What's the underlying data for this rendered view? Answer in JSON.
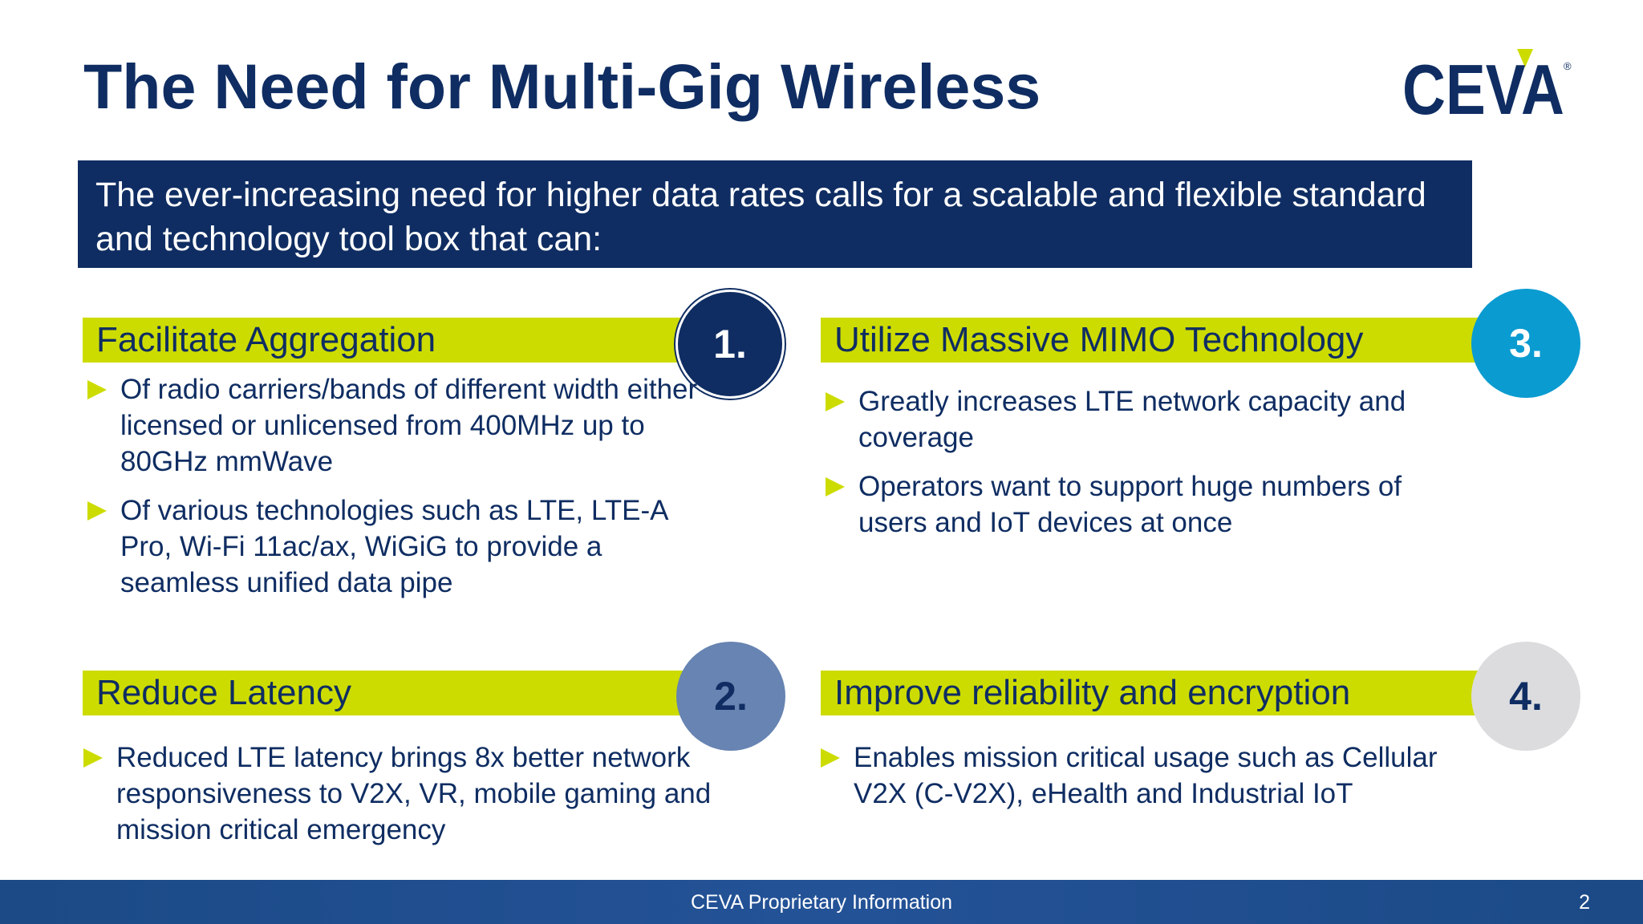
{
  "slide": {
    "title": "The Need for Multi-Gig Wireless",
    "logo_text": "CEVA",
    "logo_mark": "®",
    "intro": "The ever-increasing need for higher data rates calls for a scalable and flexible standard and technology tool box that can:"
  },
  "cards": [
    {
      "number": "1.",
      "heading": "Facilitate Aggregation",
      "circle_color": "#0f2d62",
      "bullets": [
        "Of radio carriers/bands of different width either licensed or unlicensed from 400MHz up to 80GHz mmWave",
        "Of various technologies such as LTE, LTE-A Pro, Wi-Fi 11ac/ax, WiGiG to provide a seamless unified data pipe"
      ]
    },
    {
      "number": "2.",
      "heading": "Reduce Latency",
      "circle_color": "#6784b2",
      "bullets": [
        "Reduced LTE latency brings 8x better network responsiveness to V2X, VR, mobile gaming and mission critical emergency"
      ]
    },
    {
      "number": "3.",
      "heading": "Utilize Massive MIMO Technology",
      "circle_color": "#0a9bd1",
      "bullets": [
        "Greatly increases LTE network capacity and coverage",
        "Operators want to support huge numbers of users and IoT devices at once"
      ]
    },
    {
      "number": "4.",
      "heading": "Improve reliability and encryption",
      "circle_color": "#dcdcdf",
      "bullets": [
        "Enables mission critical usage such as Cellular V2X (C-V2X), eHealth and Industrial IoT"
      ]
    }
  ],
  "footer": {
    "text": "CEVA Proprietary Information",
    "page_number": "2"
  },
  "colors": {
    "navy": "#0f2d62",
    "lime": "#cddc00",
    "footer_blue": "#1b4a86"
  }
}
